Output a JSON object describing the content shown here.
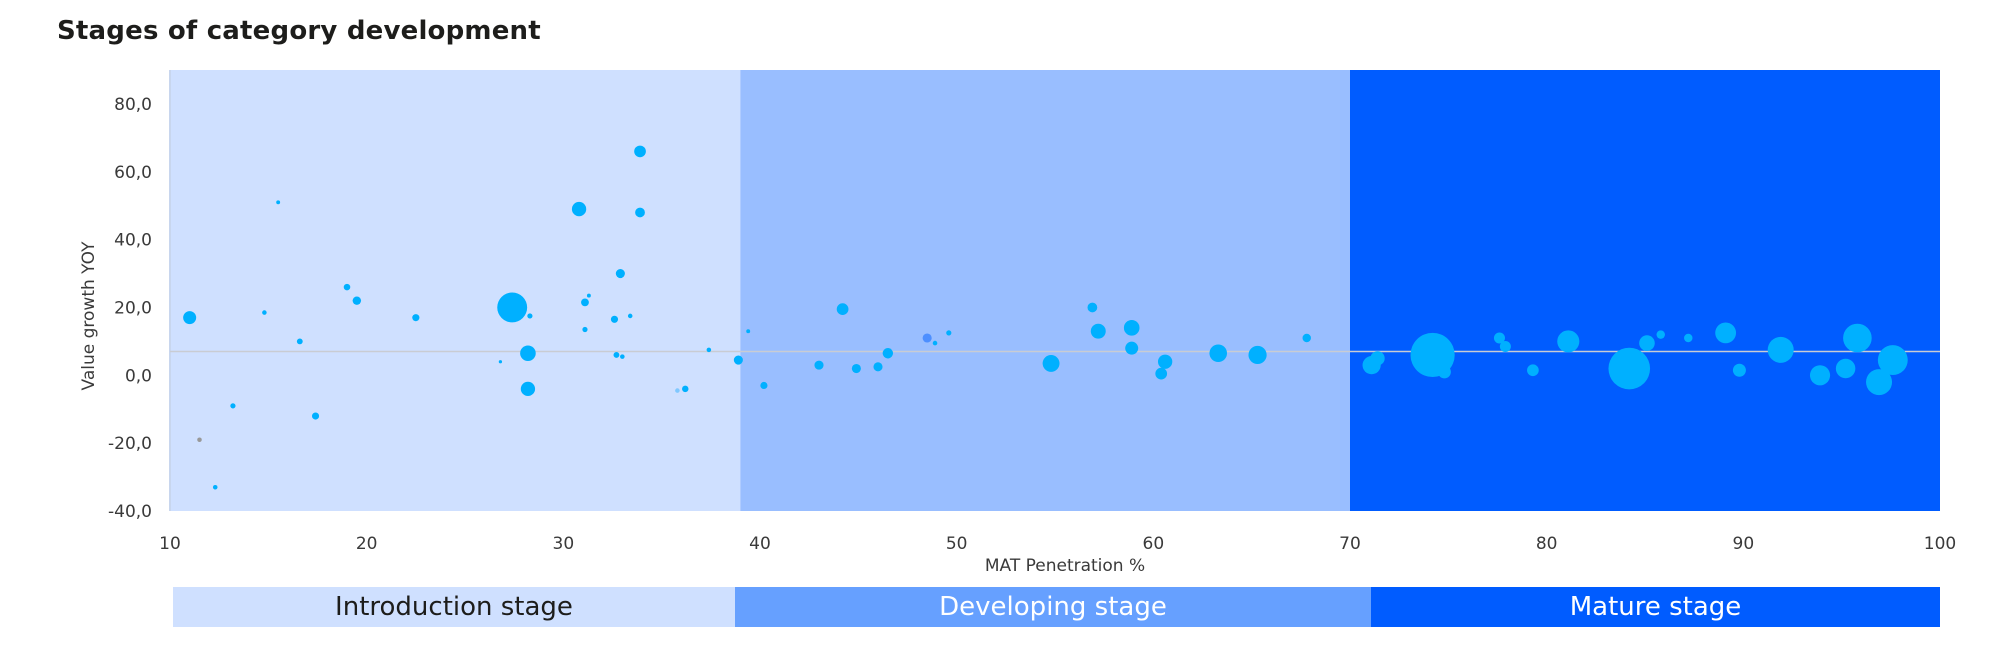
{
  "title": "Stages of category development",
  "chart_data": {
    "type": "scatter",
    "title": "Stages of category development",
    "xlabel": "MAT Penetration %",
    "ylabel": "Value growth YOY",
    "xlim": [
      10,
      100
    ],
    "ylim": [
      -40,
      90
    ],
    "x_ticks": [
      "10",
      "20",
      "30",
      "40",
      "50",
      "60",
      "70",
      "80",
      "90",
      "100"
    ],
    "y_ticks": [
      "80,0",
      "60,0",
      "40,0",
      "20,0",
      "0,0",
      "-20,0",
      "-40,0"
    ],
    "y_tick_values": [
      80,
      60,
      40,
      20,
      0,
      -20,
      -40
    ],
    "reference_line_y": 7,
    "grid": false,
    "regions": [
      {
        "label": "Introduction stage",
        "x_start": 10,
        "x_end": 39,
        "color": "#cfe0ff",
        "band_color": "#cfe0ff",
        "text_color": "#1d1d1b"
      },
      {
        "label": "Developing stage",
        "x_start": 39,
        "x_end": 70,
        "color": "#99beff",
        "band_color": "#66a0ff",
        "text_color": "#ffffff"
      },
      {
        "label": "Mature stage",
        "x_start": 70,
        "x_end": 100,
        "color": "#005cff",
        "band_color": "#005cff",
        "text_color": "#ffffff"
      }
    ],
    "bubble_color": "#00b0ff",
    "points": [
      {
        "x": 11.0,
        "y": 17,
        "size": 1.0
      },
      {
        "x": 11.5,
        "y": -19,
        "size": 0.35,
        "color": "#999999"
      },
      {
        "x": 12.3,
        "y": -33,
        "size": 0.35
      },
      {
        "x": 13.2,
        "y": -9,
        "size": 0.4
      },
      {
        "x": 14.8,
        "y": 18.5,
        "size": 0.35
      },
      {
        "x": 15.5,
        "y": 51,
        "size": 0.3
      },
      {
        "x": 16.6,
        "y": 10,
        "size": 0.45
      },
      {
        "x": 17.4,
        "y": -12,
        "size": 0.55
      },
      {
        "x": 19.0,
        "y": 26,
        "size": 0.5
      },
      {
        "x": 19.5,
        "y": 22,
        "size": 0.65
      },
      {
        "x": 22.5,
        "y": 17,
        "size": 0.55
      },
      {
        "x": 26.8,
        "y": 4,
        "size": 0.25
      },
      {
        "x": 27.4,
        "y": 20,
        "size": 2.3
      },
      {
        "x": 28.2,
        "y": 6.5,
        "size": 1.2
      },
      {
        "x": 28.2,
        "y": -4,
        "size": 1.1
      },
      {
        "x": 28.3,
        "y": 17.5,
        "size": 0.4
      },
      {
        "x": 30.8,
        "y": 49,
        "size": 1.1
      },
      {
        "x": 31.1,
        "y": 21.5,
        "size": 0.6
      },
      {
        "x": 31.1,
        "y": 13.5,
        "size": 0.4
      },
      {
        "x": 31.3,
        "y": 23.5,
        "size": 0.3
      },
      {
        "x": 32.6,
        "y": 16.5,
        "size": 0.55
      },
      {
        "x": 32.7,
        "y": 6,
        "size": 0.45
      },
      {
        "x": 32.9,
        "y": 30,
        "size": 0.7
      },
      {
        "x": 33.0,
        "y": 5.5,
        "size": 0.35
      },
      {
        "x": 33.4,
        "y": 17.5,
        "size": 0.35
      },
      {
        "x": 33.9,
        "y": 66,
        "size": 0.9
      },
      {
        "x": 33.9,
        "y": 48,
        "size": 0.75
      },
      {
        "x": 35.8,
        "y": -4.5,
        "size": 0.35,
        "color": "#80c8ff"
      },
      {
        "x": 36.2,
        "y": -4,
        "size": 0.5
      },
      {
        "x": 37.4,
        "y": 7.5,
        "size": 0.35
      },
      {
        "x": 38.9,
        "y": 4.5,
        "size": 0.7
      },
      {
        "x": 39.4,
        "y": 13,
        "size": 0.3
      },
      {
        "x": 40.2,
        "y": -3,
        "size": 0.55
      },
      {
        "x": 43.0,
        "y": 3,
        "size": 0.7
      },
      {
        "x": 44.2,
        "y": 19.5,
        "size": 0.9
      },
      {
        "x": 44.9,
        "y": 2,
        "size": 0.7
      },
      {
        "x": 46.0,
        "y": 2.5,
        "size": 0.7
      },
      {
        "x": 46.5,
        "y": 6.5,
        "size": 0.8
      },
      {
        "x": 48.5,
        "y": 11,
        "size": 0.7,
        "color": "#4d8fff"
      },
      {
        "x": 48.9,
        "y": 9.5,
        "size": 0.35
      },
      {
        "x": 49.6,
        "y": 12.5,
        "size": 0.4
      },
      {
        "x": 54.8,
        "y": 3.5,
        "size": 1.3
      },
      {
        "x": 56.9,
        "y": 20,
        "size": 0.75
      },
      {
        "x": 57.2,
        "y": 13,
        "size": 1.15
      },
      {
        "x": 58.9,
        "y": 14,
        "size": 1.2
      },
      {
        "x": 58.9,
        "y": 8,
        "size": 1.0
      },
      {
        "x": 60.4,
        "y": 0.5,
        "size": 0.9
      },
      {
        "x": 60.6,
        "y": 4,
        "size": 1.1
      },
      {
        "x": 63.3,
        "y": 6.5,
        "size": 1.35
      },
      {
        "x": 65.3,
        "y": 6,
        "size": 1.4
      },
      {
        "x": 67.8,
        "y": 11,
        "size": 0.65
      },
      {
        "x": 71.1,
        "y": 3,
        "size": 1.4
      },
      {
        "x": 71.4,
        "y": 5,
        "size": 1.1
      },
      {
        "x": 74.2,
        "y": 6,
        "size": 3.4
      },
      {
        "x": 74.8,
        "y": 1,
        "size": 1.0
      },
      {
        "x": 77.6,
        "y": 11,
        "size": 0.85
      },
      {
        "x": 77.9,
        "y": 8.5,
        "size": 0.85
      },
      {
        "x": 79.3,
        "y": 1.5,
        "size": 0.9
      },
      {
        "x": 81.1,
        "y": 10,
        "size": 1.7
      },
      {
        "x": 84.2,
        "y": 2,
        "size": 3.2
      },
      {
        "x": 85.1,
        "y": 9.5,
        "size": 1.2
      },
      {
        "x": 85.8,
        "y": 12,
        "size": 0.65
      },
      {
        "x": 87.2,
        "y": 11,
        "size": 0.65
      },
      {
        "x": 89.1,
        "y": 12.5,
        "size": 1.6
      },
      {
        "x": 89.8,
        "y": 1.5,
        "size": 1.0
      },
      {
        "x": 91.9,
        "y": 7.5,
        "size": 2.0
      },
      {
        "x": 93.9,
        "y": 0,
        "size": 1.55
      },
      {
        "x": 95.2,
        "y": 2,
        "size": 1.5
      },
      {
        "x": 95.8,
        "y": 11,
        "size": 2.2
      },
      {
        "x": 96.9,
        "y": -2,
        "size": 2.0
      },
      {
        "x": 97.6,
        "y": 4.5,
        "size": 2.3
      }
    ]
  }
}
